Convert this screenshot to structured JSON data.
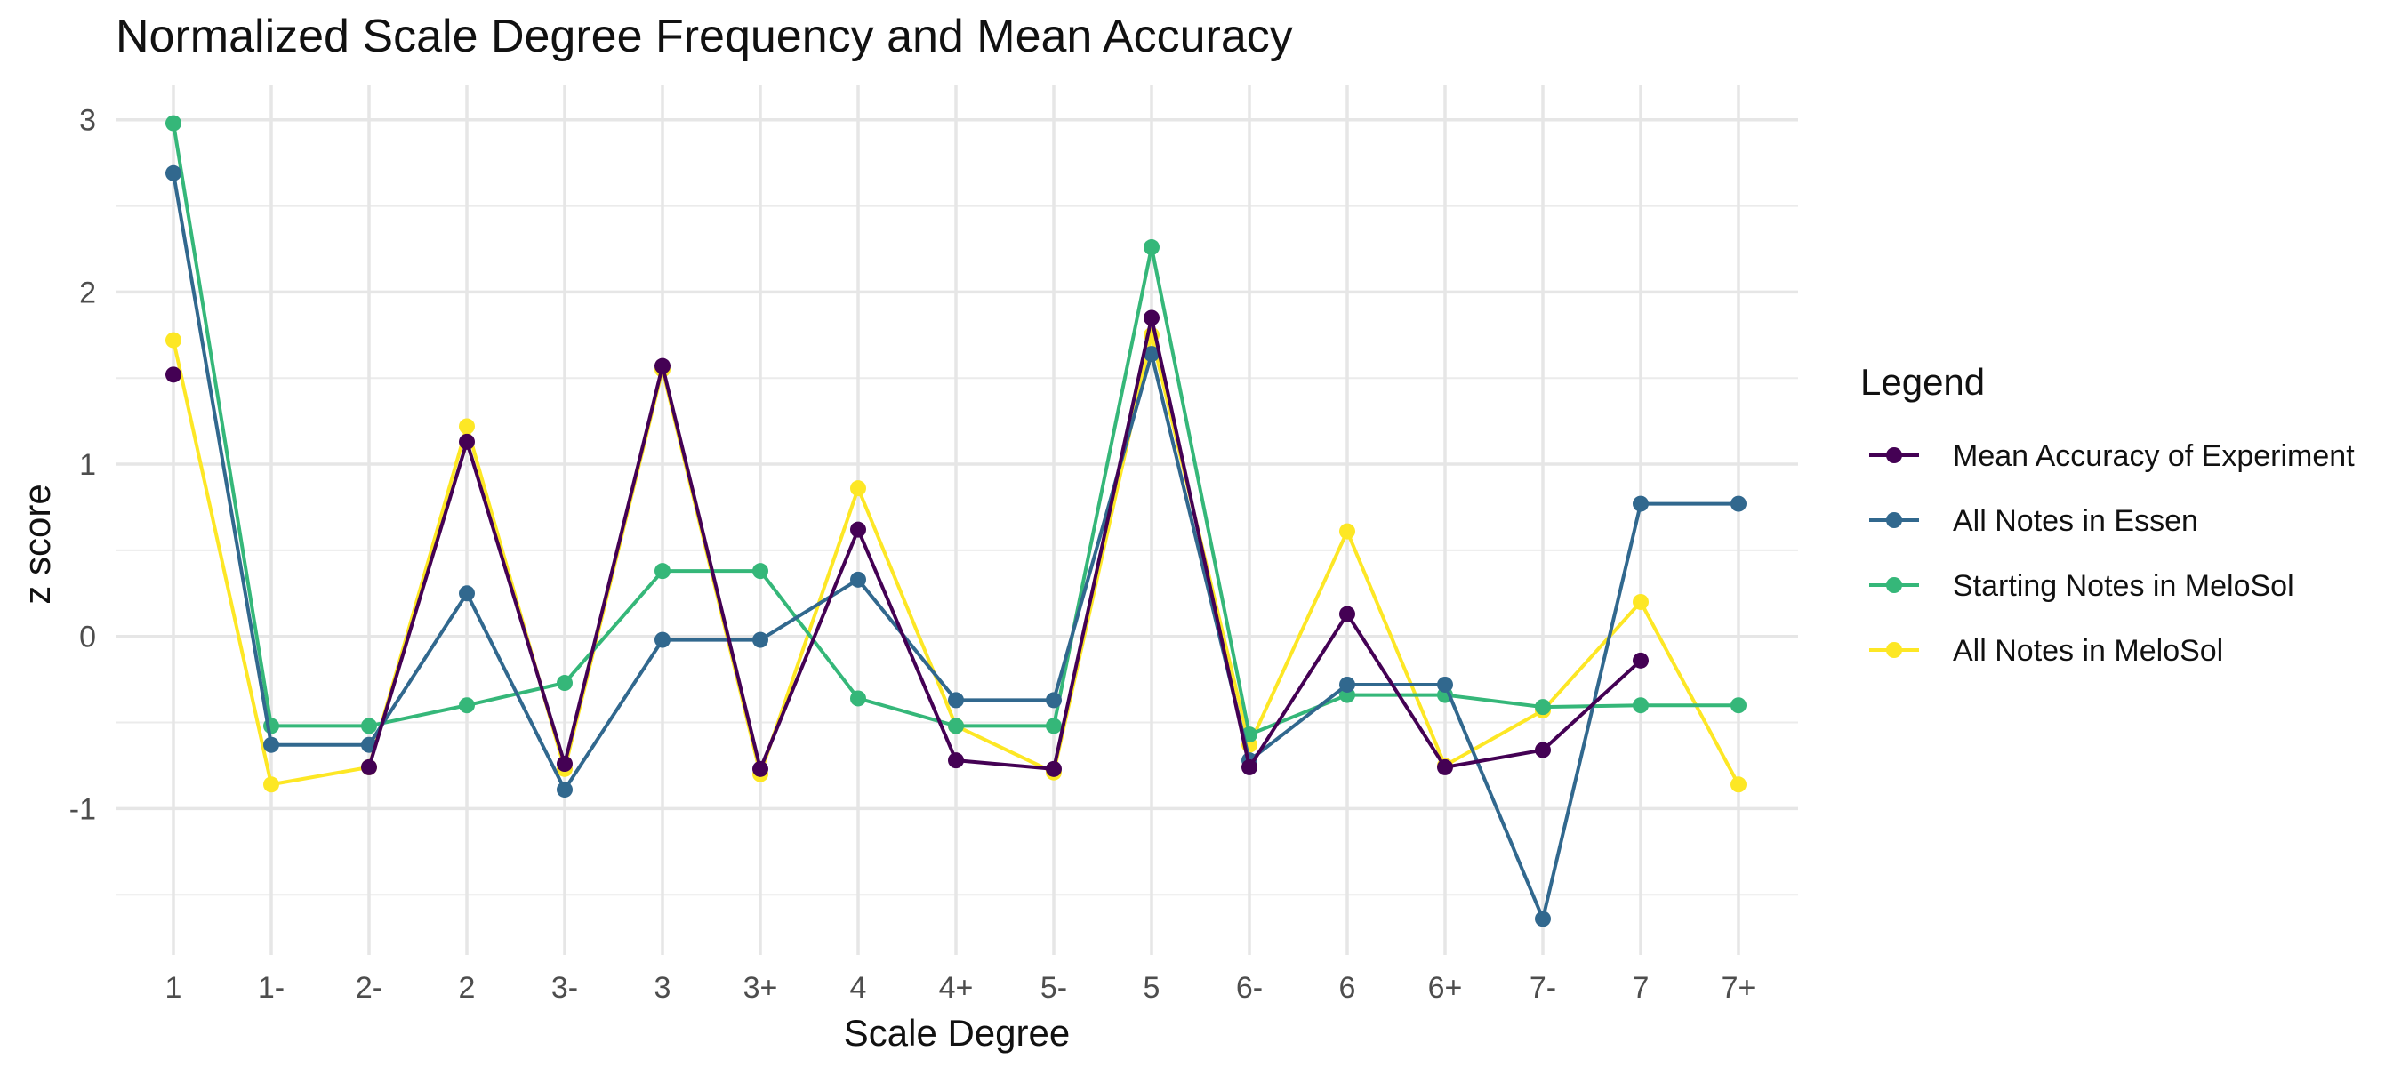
{
  "chart_data": {
    "type": "line",
    "title": "Normalized Scale Degree Frequency and Mean Accuracy",
    "xlabel": "Scale Degree",
    "ylabel": "z score",
    "categories": [
      "1",
      "1-",
      "2-",
      "2",
      "3-",
      "3",
      "3+",
      "4",
      "4+",
      "5-",
      "5",
      "6-",
      "6",
      "6+",
      "7-",
      "7",
      "7+"
    ],
    "ylim": [
      -1.85,
      3.2
    ],
    "yticks": [
      -1,
      0,
      1,
      2,
      3
    ],
    "yticks_labels": [
      "-1",
      "0",
      "1",
      "2",
      "3"
    ],
    "grid": true,
    "legend": {
      "title": "Legend",
      "position": "right"
    },
    "series": [
      {
        "name": "Mean Accuracy of Experiment",
        "color": "#440154",
        "values": [
          1.52,
          null,
          -0.76,
          1.13,
          -0.74,
          1.57,
          -0.77,
          0.62,
          -0.72,
          -0.77,
          1.85,
          -0.76,
          0.13,
          -0.76,
          -0.66,
          -0.14,
          null
        ]
      },
      {
        "name": "All Notes in Essen",
        "color": "#31688E",
        "values": [
          2.69,
          -0.63,
          -0.63,
          0.25,
          -0.89,
          -0.02,
          -0.02,
          0.33,
          -0.37,
          -0.37,
          1.64,
          -0.72,
          -0.28,
          -0.28,
          -1.64,
          0.77,
          0.77
        ]
      },
      {
        "name": "Starting Notes in MeloSol",
        "color": "#35B779",
        "values": [
          2.98,
          -0.52,
          -0.52,
          -0.4,
          -0.27,
          0.38,
          0.38,
          -0.36,
          -0.52,
          -0.52,
          2.26,
          -0.57,
          -0.34,
          -0.34,
          -0.41,
          -0.4,
          -0.4
        ]
      },
      {
        "name": "All Notes in MeloSol",
        "color": "#FDE725",
        "values": [
          1.72,
          -0.86,
          -0.76,
          1.22,
          -0.77,
          1.55,
          -0.8,
          0.86,
          -0.52,
          -0.79,
          1.75,
          -0.63,
          0.61,
          -0.75,
          -0.43,
          0.2,
          -0.86
        ]
      }
    ]
  }
}
